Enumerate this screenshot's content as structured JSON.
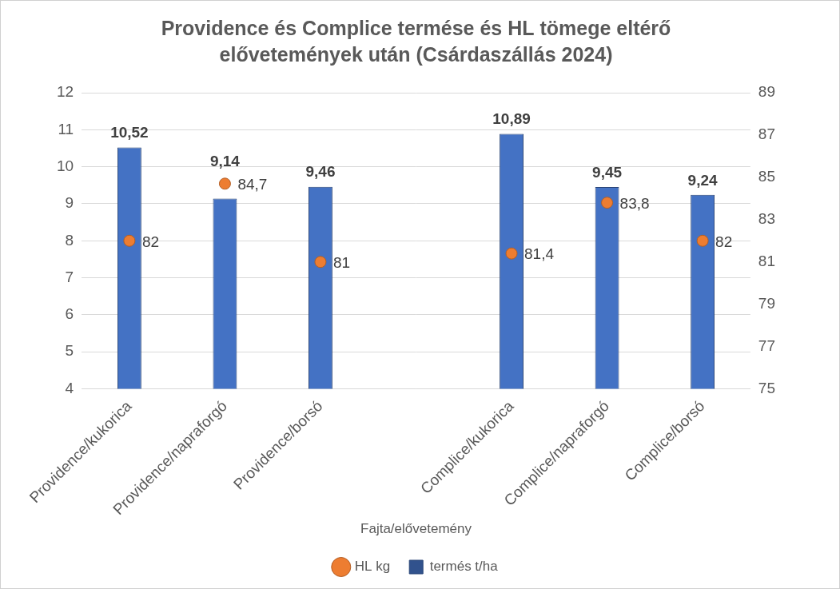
{
  "chart_data": {
    "type": "bar",
    "title": [
      "Providence és Complice termése és HL tömege eltérő",
      "elővetemények után (Csárdaszállás 2024)"
    ],
    "x_label": "Fajta/elővetemény",
    "categories": [
      "Providence/kukorica",
      "Providence/napraforgó",
      "Providence/borsó",
      null,
      "Complice/kukorica",
      "Complice/napraforgó",
      "Complice/borsó"
    ],
    "series": [
      {
        "name": "termés t/ha",
        "type": "bar",
        "color": "#4472c4",
        "values": [
          10.52,
          9.14,
          9.46,
          null,
          10.89,
          9.45,
          9.24
        ],
        "value_labels": [
          "10,52",
          "9,14",
          "9,46",
          null,
          "10,89",
          "9,45",
          "9,24"
        ]
      },
      {
        "name": "HL kg",
        "type": "scatter",
        "axis": "y2",
        "color": "#ed7d31",
        "marker": "circle",
        "values": [
          82,
          84.7,
          81,
          null,
          81.4,
          83.8,
          82
        ],
        "value_labels": [
          "82",
          "84,7",
          "81",
          null,
          "81,4",
          "83,8",
          "82"
        ]
      }
    ],
    "ylim": [
      4,
      12
    ],
    "yticks": [
      4,
      5,
      6,
      7,
      8,
      9,
      10,
      11,
      12
    ],
    "y2lim": [
      75,
      89
    ],
    "y2ticks": [
      75,
      77,
      79,
      81,
      83,
      85,
      87,
      89
    ],
    "grid": true,
    "legend": "bottom",
    "data_labels": true
  }
}
